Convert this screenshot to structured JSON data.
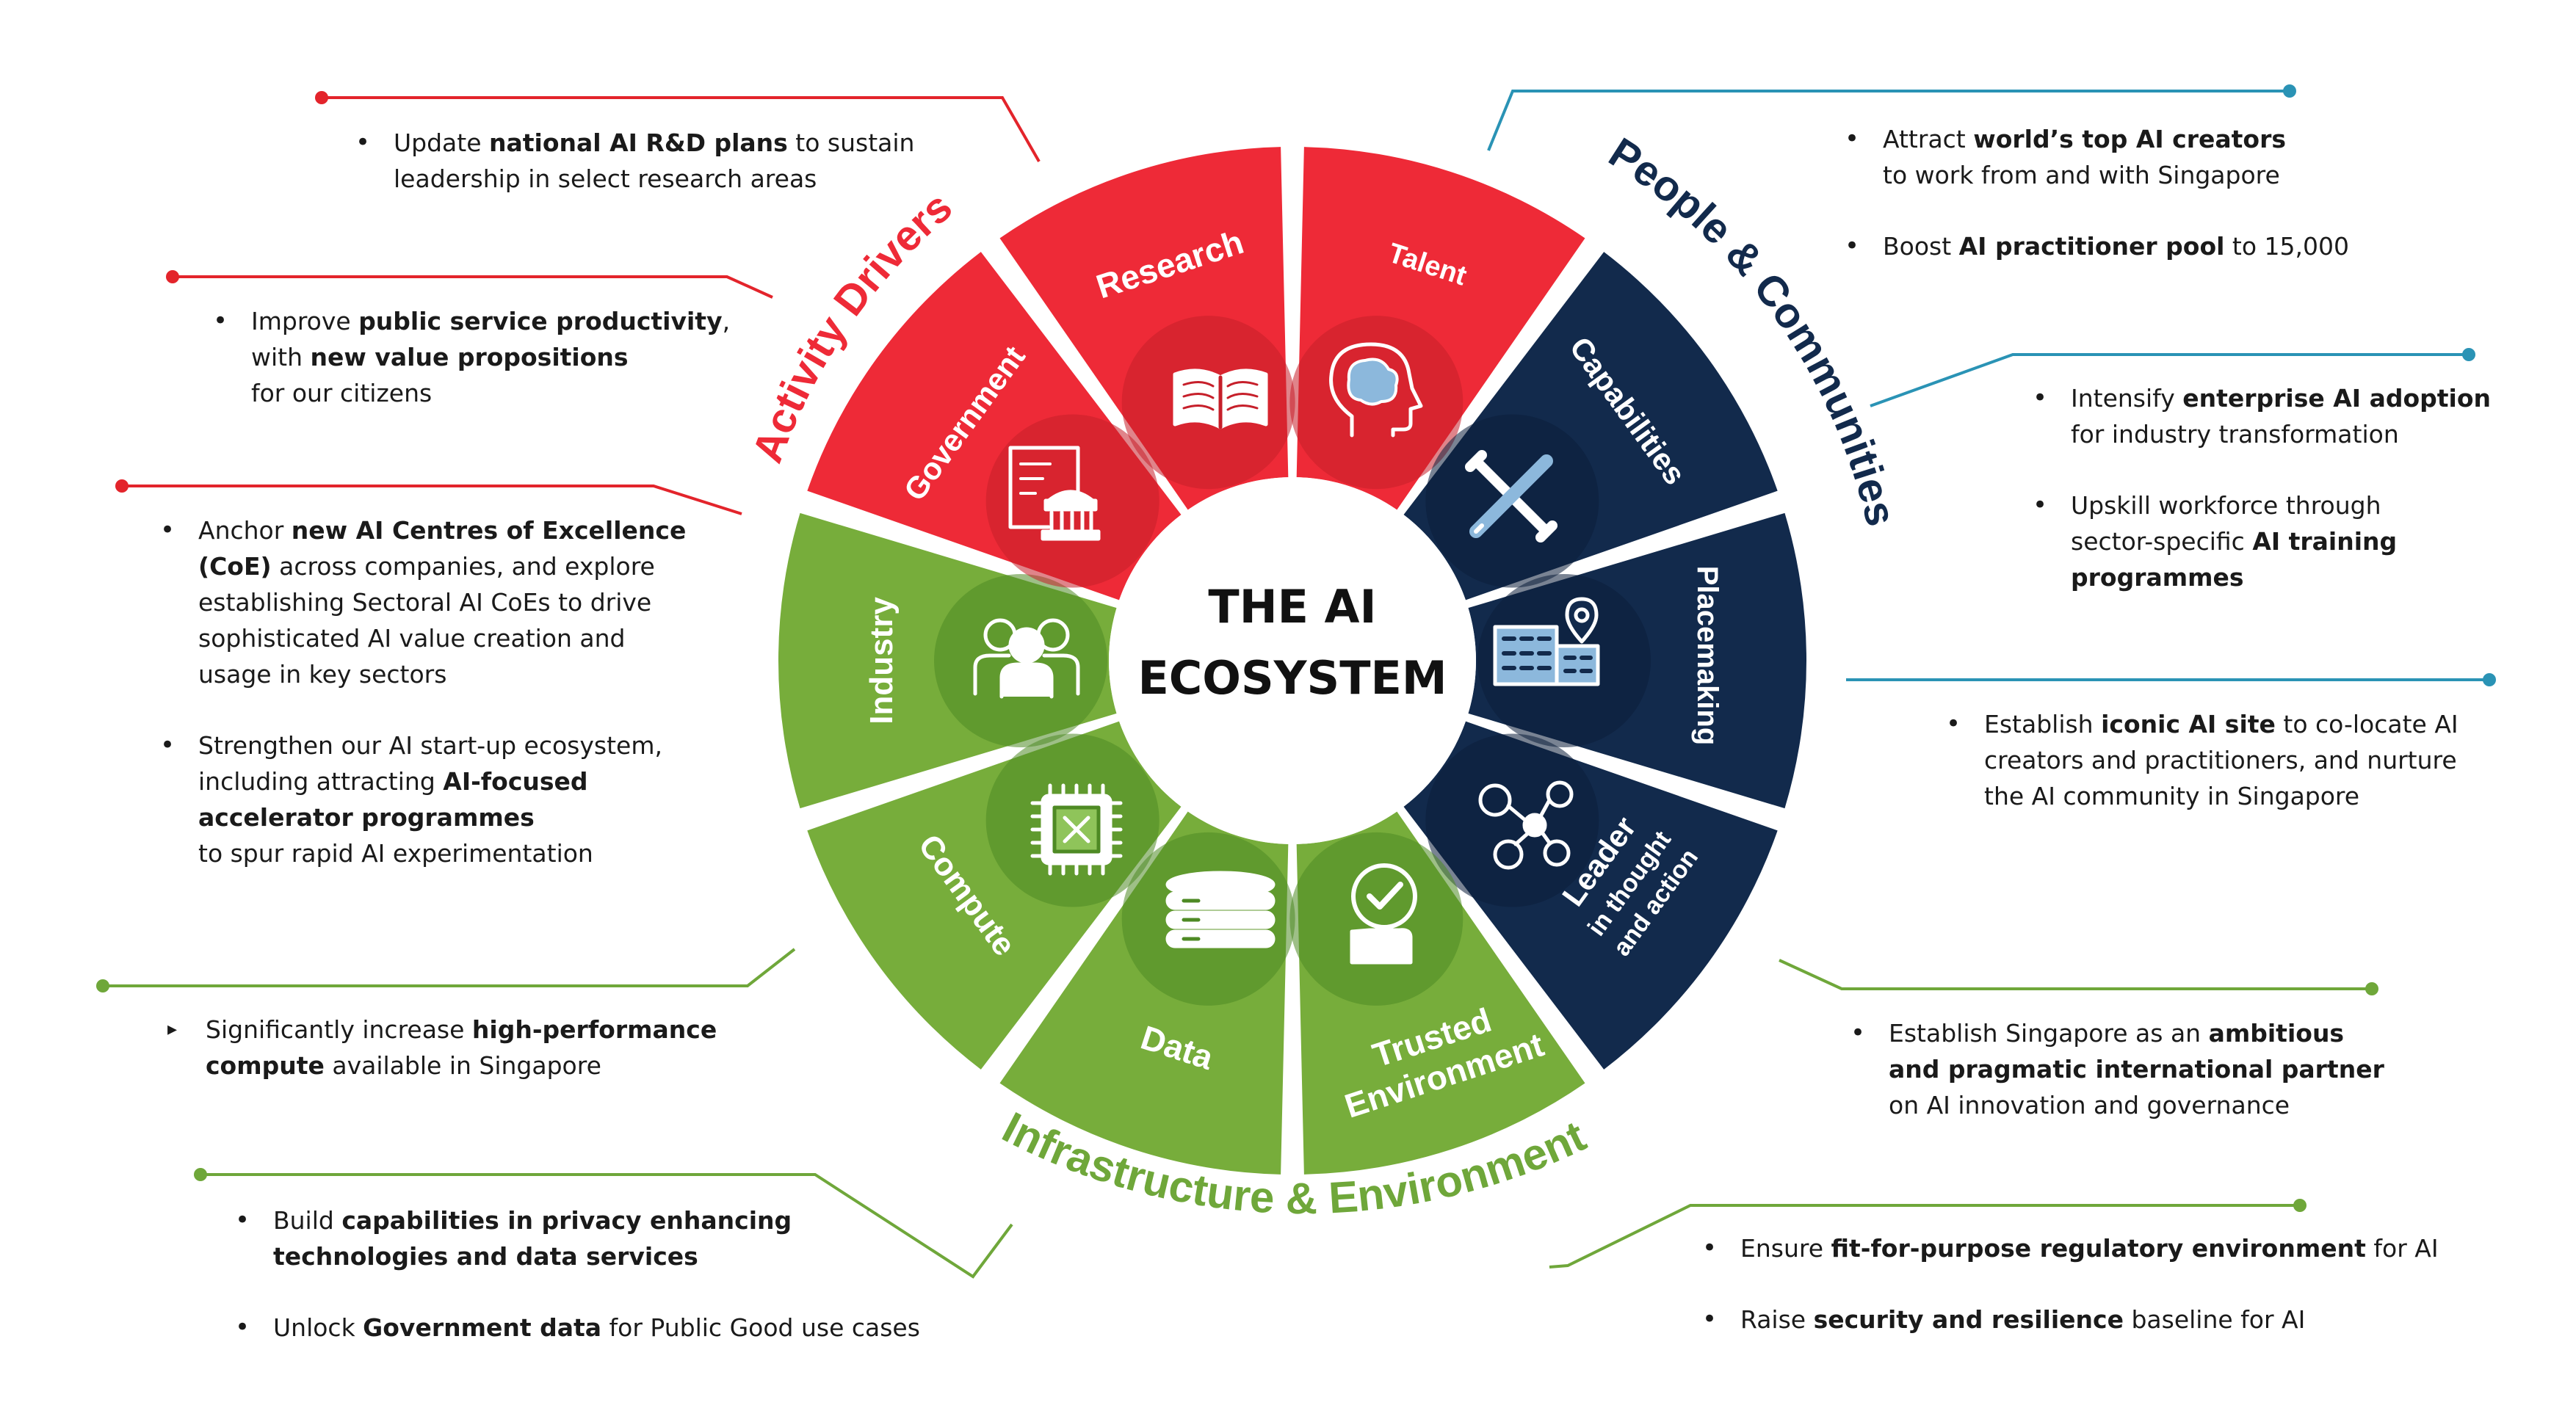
{
  "colors": {
    "red": "#EE2A37",
    "navy": "#122A4C",
    "green": "#77AD3B",
    "darkred": "#C61F2A",
    "darkgreen": "#4E8A24",
    "leaderline_teal": "#2A93B5"
  },
  "center": {
    "line1": "THE AI",
    "line2": "ECOSYSTEM"
  },
  "groups": {
    "activity": "Activity Drivers",
    "people": "People & Communities",
    "infra": "Infrastructure & Environment"
  },
  "segments": [
    {
      "id": "research",
      "label": "Research",
      "icon": "book-icon",
      "color": "red"
    },
    {
      "id": "talent",
      "label": "Talent",
      "icon": "brain-head-icon",
      "color": "navy"
    },
    {
      "id": "capabilities",
      "label": "Capabilities",
      "icon": "tools-icon",
      "color": "navy"
    },
    {
      "id": "placemaking",
      "label": "Placemaking",
      "icon": "building-pin-icon",
      "color": "navy"
    },
    {
      "id": "leader",
      "label1": "Leader",
      "label2": "in thought",
      "label3": "and action",
      "icon": "network-icon",
      "color": "green"
    },
    {
      "id": "trusted",
      "label1": "Trusted",
      "label2": "Environment",
      "icon": "check-hand-icon",
      "color": "green"
    },
    {
      "id": "data",
      "label": "Data",
      "icon": "database-icon",
      "color": "green"
    },
    {
      "id": "compute",
      "label": "Compute",
      "icon": "chip-icon",
      "color": "green"
    },
    {
      "id": "industry",
      "label": "Industry",
      "icon": "people-icon",
      "color": "red"
    },
    {
      "id": "government",
      "label": "Government",
      "icon": "government-icon",
      "color": "red"
    }
  ],
  "callouts": {
    "research": {
      "b1": {
        "t1": "Update ",
        "b": "national AI R&D plans",
        "t2": " to sustain",
        "l2": "leadership in select research areas"
      }
    },
    "government": {
      "b1": {
        "t1": "Improve ",
        "b": "public service productivity",
        "t2": ",",
        "l2pre": "with ",
        "l2b": "new value propositions",
        "l3": "for our citizens"
      }
    },
    "industry": {
      "b1": {
        "t1": "Anchor ",
        "b": "new AI Centres of Excellence",
        "l2b": "(CoE)",
        "l2": " across companies, and explore",
        "l3": "establishing Sectoral AI CoEs to drive",
        "l4": "sophisticated AI value creation and",
        "l5": "usage in key sectors"
      },
      "b2": {
        "l1": "Strengthen our AI start-up ecosystem,",
        "l2": "including attracting ",
        "l2b": "AI-focused",
        "l3b": "accelerator programmes",
        "l4": "to spur rapid AI experimentation"
      }
    },
    "compute": {
      "b1": {
        "t1": "Significantly increase ",
        "b": "high-performance",
        "l2b": "compute",
        "l2": " available in Singapore"
      }
    },
    "data": {
      "b1": {
        "t1": "Build ",
        "b": "capabilities in privacy enhancing",
        "l2b": "technologies and data services"
      },
      "b2": {
        "t1": "Unlock ",
        "b": "Government data",
        "t2": " for Public Good use cases"
      }
    },
    "talent": {
      "b1": {
        "t1": "Attract ",
        "b": "world’s top AI creators",
        "l2": "to work from and with Singapore"
      },
      "b2": {
        "t1": "Boost ",
        "b": "AI practitioner pool",
        "t2": " to 15,000"
      }
    },
    "capabilities": {
      "b1": {
        "t1": "Intensify ",
        "b": "enterprise AI adoption",
        "l2": "for industry transformation"
      },
      "b2": {
        "l1": "Upskill workforce through",
        "l2": "sector-specific ",
        "l2b": "AI training",
        "l3b": "programmes"
      }
    },
    "placemaking": {
      "b1": {
        "t1": "Establish ",
        "b": "iconic AI site",
        "t2": " to co-locate AI",
        "l2": "creators and practitioners, and nurture",
        "l3": "the AI community in Singapore"
      }
    },
    "leader": {
      "b1": {
        "t1": "Establish Singapore as an ",
        "b": "ambitious",
        "l2b": "and pragmatic international partner",
        "l3": "on AI innovation and governance"
      }
    },
    "trusted": {
      "b1": {
        "t1": "Ensure ",
        "b": "fit-for-purpose regulatory environment",
        "t2": " for AI"
      },
      "b2": {
        "t1": "Raise ",
        "b": "security and resilience",
        "t2": " baseline for AI"
      }
    }
  }
}
